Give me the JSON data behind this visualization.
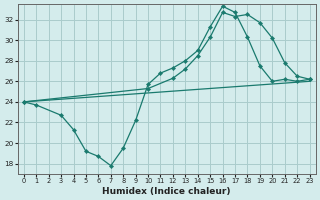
{
  "xlabel": "Humidex (Indice chaleur)",
  "bg_color": "#d4ecec",
  "grid_color": "#aacccc",
  "line_color": "#1a7a6e",
  "xlim": [
    -0.5,
    23.5
  ],
  "ylim": [
    17.0,
    33.5
  ],
  "yticks": [
    18,
    20,
    22,
    24,
    26,
    28,
    30,
    32
  ],
  "xticks": [
    0,
    1,
    2,
    3,
    4,
    5,
    6,
    7,
    8,
    9,
    10,
    11,
    12,
    13,
    14,
    15,
    16,
    17,
    18,
    19,
    20,
    21,
    22,
    23
  ],
  "line1_x": [
    0,
    1,
    3,
    4,
    5,
    6,
    7,
    8,
    9,
    10,
    11,
    12,
    13,
    14,
    15,
    16,
    17,
    18,
    19,
    20,
    21,
    22,
    23
  ],
  "line1_y": [
    24.0,
    23.7,
    22.7,
    21.3,
    19.2,
    18.7,
    17.8,
    19.5,
    22.2,
    25.7,
    26.8,
    27.3,
    28.0,
    29.0,
    31.3,
    33.3,
    32.7,
    30.3,
    27.5,
    26.0,
    26.2,
    26.0,
    26.2
  ],
  "line2_x": [
    0,
    23
  ],
  "line2_y": [
    24.0,
    26.0
  ],
  "line3_x": [
    0,
    10,
    12,
    13,
    14,
    15,
    16,
    17,
    18,
    19,
    20,
    21,
    22,
    23
  ],
  "line3_y": [
    24.0,
    25.3,
    26.3,
    27.2,
    28.5,
    30.3,
    32.7,
    32.3,
    32.5,
    31.7,
    30.2,
    27.8,
    26.5,
    26.2
  ]
}
